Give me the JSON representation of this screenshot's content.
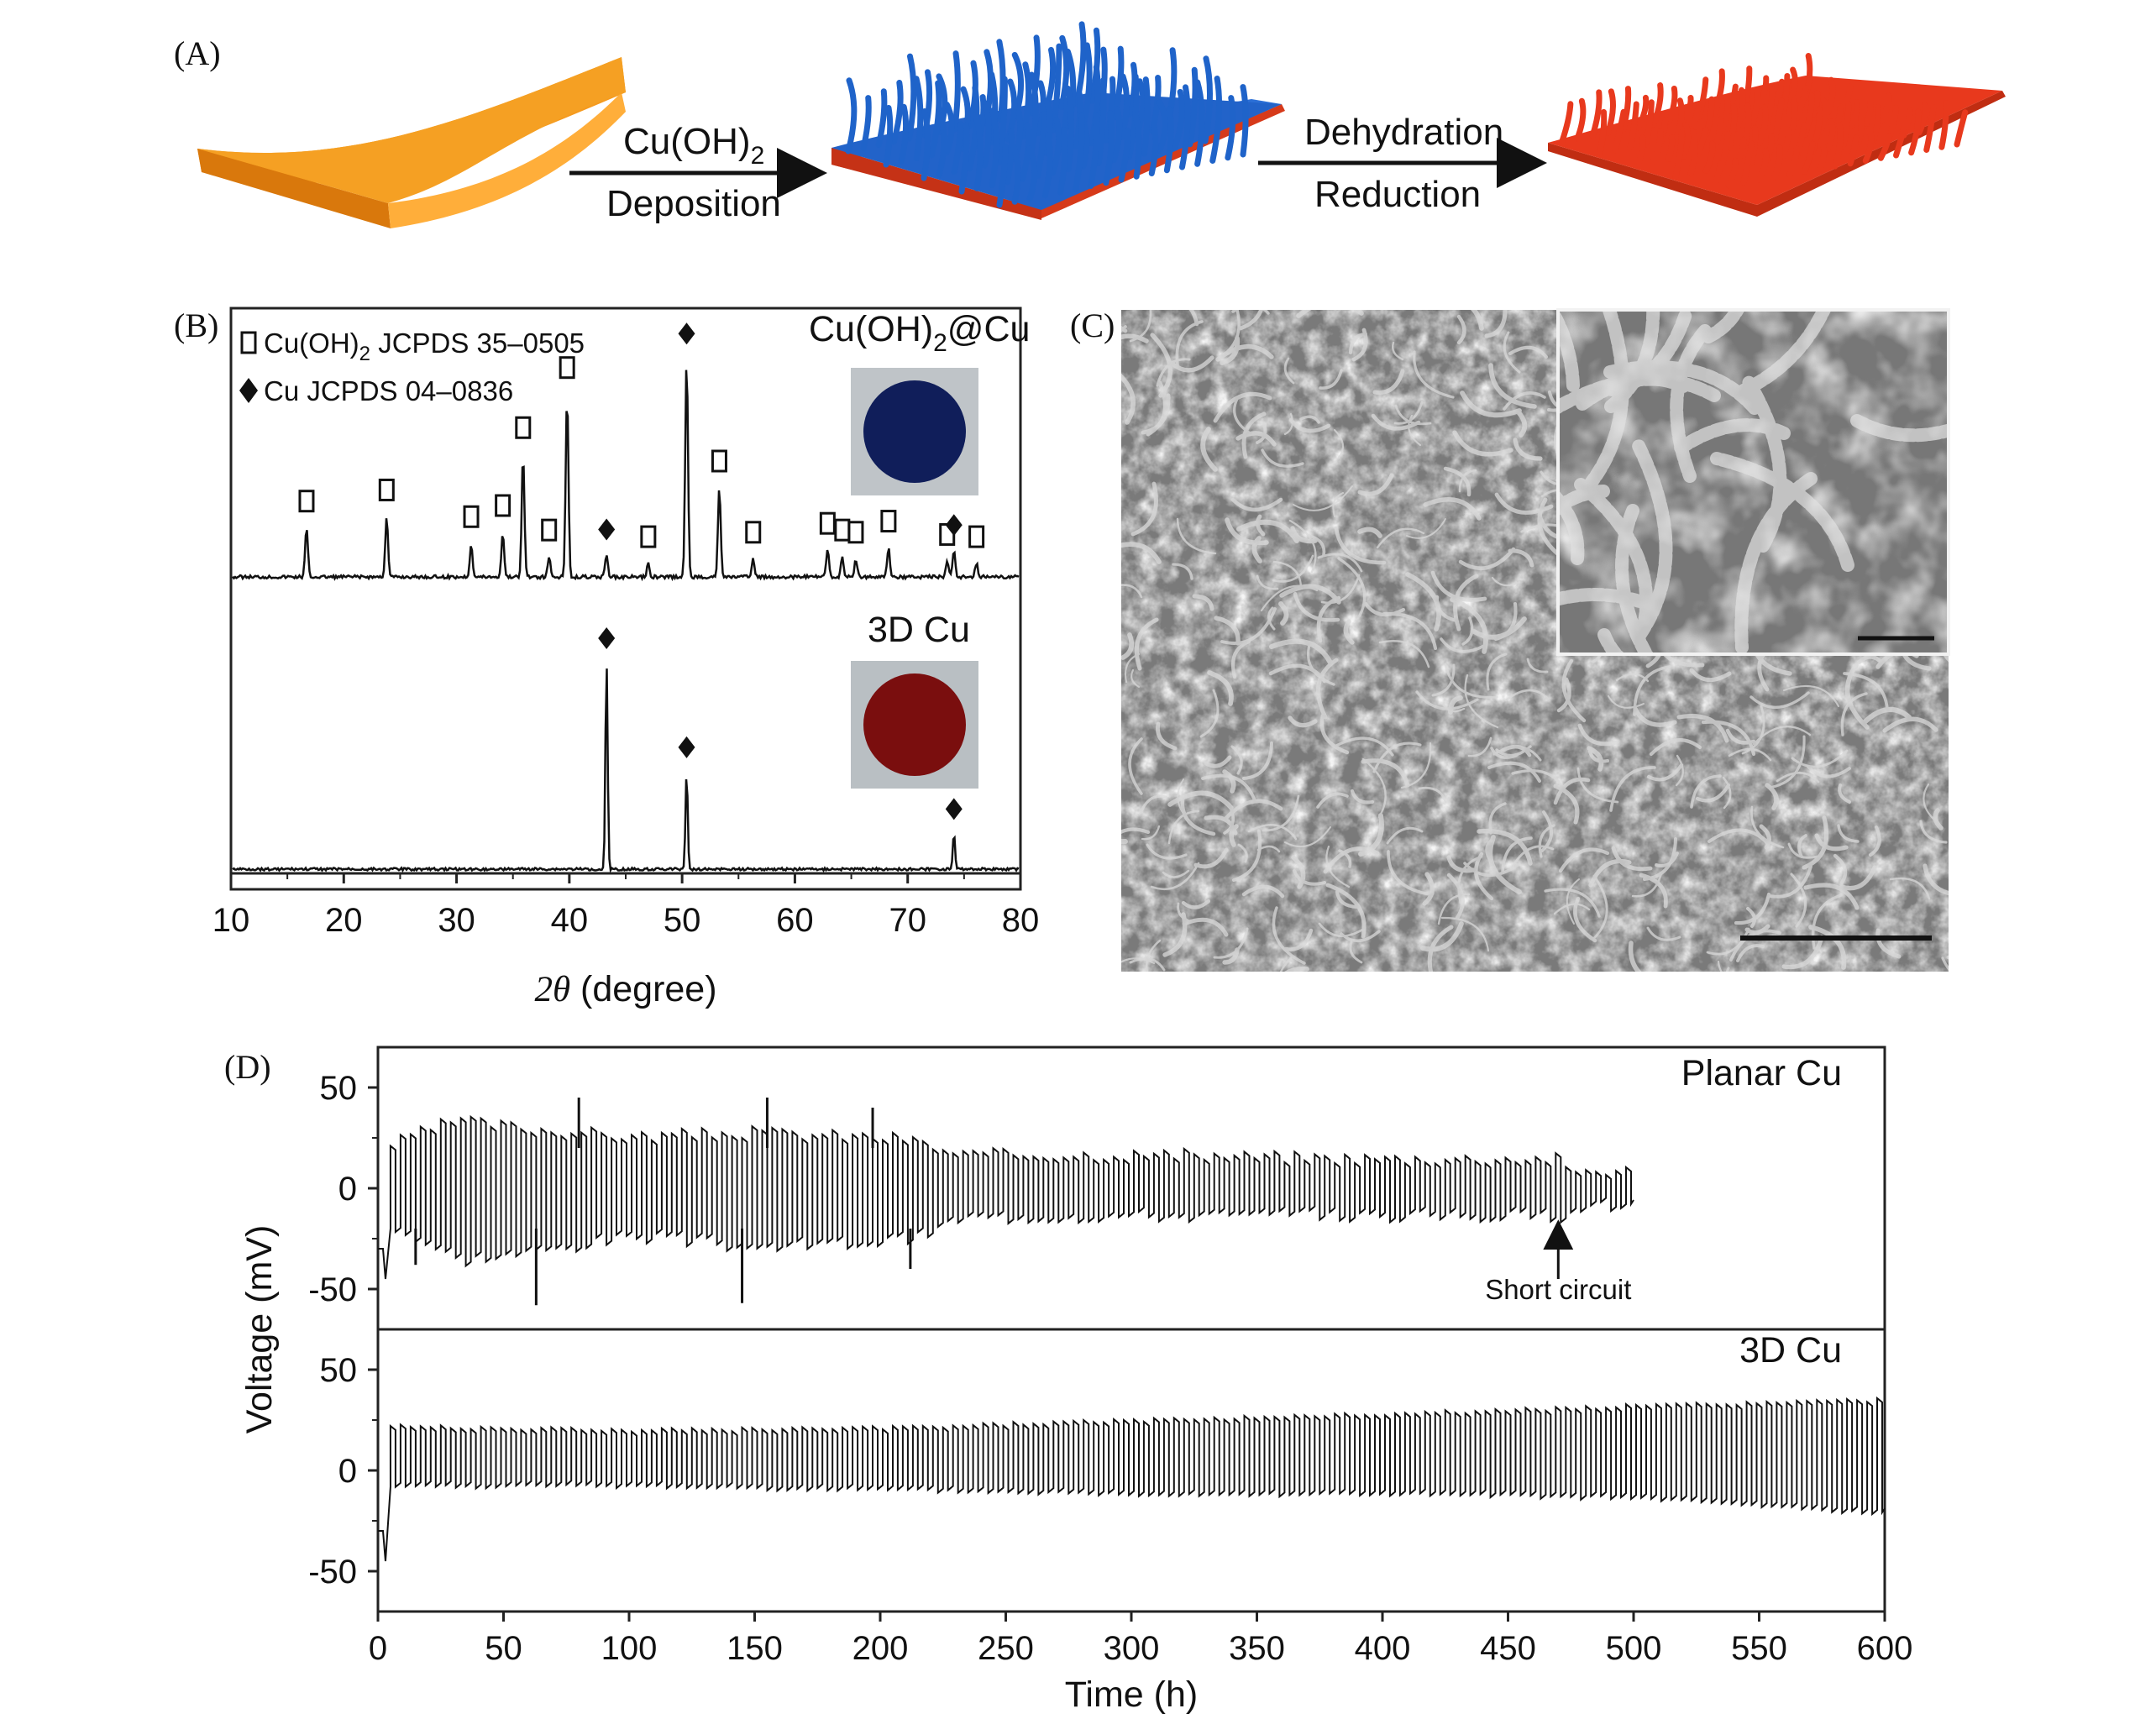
{
  "panel_labels": {
    "a": "(A)",
    "b": "(B)",
    "c": "(C)",
    "d": "(D)"
  },
  "schematic": {
    "step1_top": "Cu(OH)",
    "step1_top_sub": "2",
    "step1_bottom": "Deposition",
    "step2_top": "Dehydration",
    "step2_bottom": "Reduction",
    "colors": {
      "foil": "#f59a1e",
      "hydroxide": "#1f63c9",
      "copper": "#e8391d"
    }
  },
  "xrd": {
    "legend1_prefix": "Cu(OH)",
    "legend1_sub": "2",
    "legend1_suffix": " JCPDS 35–0505",
    "legend2": "Cu JCPDS 04–0836",
    "top_name_prefix": "Cu(OH)",
    "top_name_sub": "2",
    "top_name_suffix": "@Cu",
    "bottom_name": "3D Cu",
    "xlabel_theta": "2θ",
    "xlabel_unit": " (degree)",
    "photo_top_color": "#101e5a",
    "photo_bottom_color": "#7a0e0e"
  },
  "sem": {
    "inset": true
  },
  "cycling": {
    "top_label": "Planar Cu",
    "bottom_label": "3D Cu",
    "annotation": "Short circuit",
    "ylabel": "Voltage (mV)",
    "xlabel": "Time (h)"
  },
  "chart_data": [
    {
      "type": "line",
      "panel": "B",
      "title": "",
      "xlabel": "2θ (degree)",
      "ylabel": "",
      "xlim": [
        10,
        80
      ],
      "xticks": [
        10,
        20,
        30,
        40,
        50,
        60,
        70,
        80
      ],
      "series": [
        {
          "name": "Cu(OH)2@Cu",
          "peaks_cuoh2": [
            16.7,
            23.8,
            31.3,
            34.1,
            35.9,
            38.2,
            39.8,
            47.0,
            53.3,
            56.3,
            62.9,
            64.2,
            65.4,
            68.3,
            73.5,
            76.1
          ],
          "peaks_cu": [
            43.3,
            50.4,
            74.1
          ],
          "peak_heights": [
            0.22,
            0.27,
            0.15,
            0.2,
            0.55,
            0.09,
            0.82,
            0.06,
            0.4,
            0.08,
            0.12,
            0.09,
            0.08,
            0.13,
            0.07,
            0.06,
            0.1,
            0.98,
            0.12
          ]
        },
        {
          "name": "3D Cu",
          "peaks_cu": [
            43.3,
            50.4,
            74.1
          ],
          "peak_heights": [
            1.0,
            0.47,
            0.17
          ]
        }
      ]
    },
    {
      "type": "line",
      "panel": "D",
      "xlabel": "Time (h)",
      "ylabel": "Voltage (mV)",
      "xlim": [
        0,
        600
      ],
      "xticks": [
        0,
        50,
        100,
        150,
        200,
        250,
        300,
        350,
        400,
        450,
        500,
        550,
        600
      ],
      "ylim": [
        -70,
        70
      ],
      "yticks": [
        -50,
        0,
        50
      ],
      "series": [
        {
          "name": "Planar Cu",
          "cycle_period_h": 4,
          "x_end": 500,
          "short_circuit_h": 470,
          "envelope_upper": [
            [
              5,
              22
            ],
            [
              30,
              34
            ],
            [
              60,
              30
            ],
            [
              100,
              26
            ],
            [
              150,
              28
            ],
            [
              210,
              25
            ],
            [
              230,
              17
            ],
            [
              300,
              17
            ],
            [
              400,
              15
            ],
            [
              470,
              15
            ],
            [
              472,
              9
            ],
            [
              500,
              9
            ]
          ],
          "envelope_lower": [
            [
              5,
              -20
            ],
            [
              30,
              -36
            ],
            [
              60,
              -32
            ],
            [
              100,
              -24
            ],
            [
              150,
              -30
            ],
            [
              210,
              -26
            ],
            [
              230,
              -15
            ],
            [
              300,
              -14
            ],
            [
              400,
              -14
            ],
            [
              470,
              -14
            ],
            [
              472,
              -9
            ],
            [
              500,
              -9
            ]
          ],
          "spikes": [
            [
              15,
              -38
            ],
            [
              63,
              -58
            ],
            [
              80,
              45
            ],
            [
              145,
              -57
            ],
            [
              155,
              45
            ],
            [
              197,
              40
            ],
            [
              212,
              -40
            ]
          ]
        },
        {
          "name": "3D Cu",
          "cycle_period_h": 4,
          "x_end": 600,
          "envelope_upper": [
            [
              5,
              22
            ],
            [
              100,
              20
            ],
            [
              200,
              21
            ],
            [
              300,
              25
            ],
            [
              400,
              28
            ],
            [
              500,
              32
            ],
            [
              600,
              35
            ]
          ],
          "envelope_lower": [
            [
              5,
              -8
            ],
            [
              100,
              -8
            ],
            [
              200,
              -10
            ],
            [
              300,
              -12
            ],
            [
              400,
              -12
            ],
            [
              500,
              -14
            ],
            [
              600,
              -22
            ]
          ]
        }
      ]
    }
  ]
}
